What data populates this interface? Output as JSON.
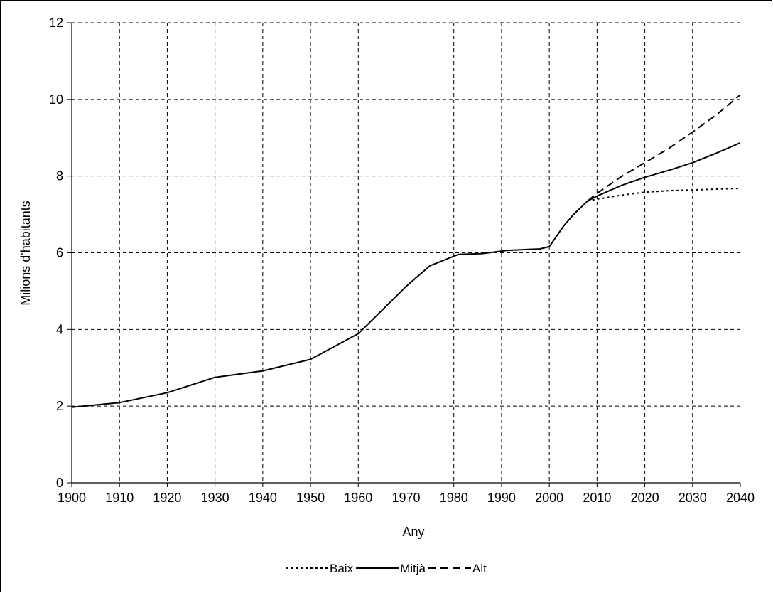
{
  "chart_data": {
    "type": "line",
    "xlabel": "Any",
    "ylabel": "Milions d'habitants",
    "xlim": [
      1900,
      2040
    ],
    "ylim": [
      0,
      12
    ],
    "xticks": [
      "1900",
      "1910",
      "1920",
      "1930",
      "1940",
      "1950",
      "1960",
      "1970",
      "1980",
      "1990",
      "2000",
      "2010",
      "2020",
      "2030",
      "2040"
    ],
    "yticks": [
      "0",
      "2",
      "4",
      "6",
      "8",
      "10",
      "12"
    ],
    "grid": true,
    "legend_position": "bottom",
    "series": [
      {
        "name": "Baix",
        "dash": "dotted",
        "x": [
          2008,
          2010,
          2015,
          2020,
          2025,
          2030,
          2035,
          2040
        ],
        "y": [
          7.35,
          7.4,
          7.5,
          7.58,
          7.62,
          7.64,
          7.66,
          7.68
        ]
      },
      {
        "name": "Mitjà",
        "dash": "solid",
        "x": [
          1900,
          1910,
          1920,
          1930,
          1940,
          1950,
          1960,
          1970,
          1975,
          1981,
          1986,
          1991,
          1996,
          1998,
          2000,
          2001,
          2003,
          2005,
          2008,
          2010,
          2015,
          2020,
          2025,
          2030,
          2035,
          2040
        ],
        "y": [
          1.97,
          2.09,
          2.35,
          2.75,
          2.92,
          3.22,
          3.89,
          5.12,
          5.66,
          5.96,
          5.98,
          6.06,
          6.09,
          6.1,
          6.16,
          6.34,
          6.7,
          6.99,
          7.35,
          7.48,
          7.75,
          7.97,
          8.15,
          8.35,
          8.6,
          8.87
        ]
      },
      {
        "name": "Alt",
        "dash": "dashed",
        "x": [
          2008,
          2010,
          2015,
          2020,
          2025,
          2030,
          2035,
          2040
        ],
        "y": [
          7.35,
          7.55,
          7.98,
          8.35,
          8.72,
          9.15,
          9.6,
          10.12
        ]
      }
    ]
  }
}
